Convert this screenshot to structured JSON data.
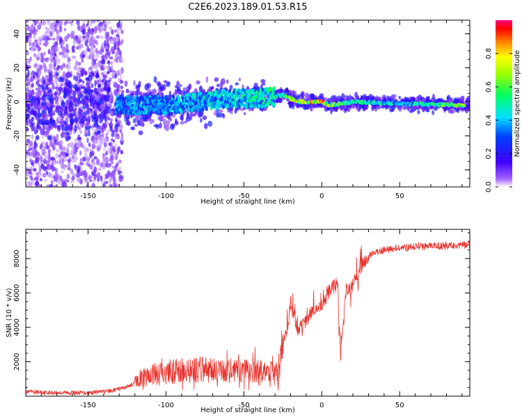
{
  "title": "C2E6.2023.189.01.53.R15",
  "chart_data": [
    {
      "type": "heatmap",
      "xlabel": "Height of straight line (km)",
      "ylabel": "Frequency (Hz)",
      "xlim": [
        -190,
        95
      ],
      "ylim": [
        -50,
        48
      ],
      "xticks": [
        -150,
        -100,
        -50,
        0,
        50
      ],
      "xtick_labels": [
        "-150",
        "-100",
        "-50",
        "0",
        "50"
      ],
      "yticks": [
        -40,
        -20,
        0,
        20,
        40
      ],
      "ytick_labels": [
        "-40",
        "-20",
        "0",
        "20",
        "40"
      ],
      "colorbar": {
        "label": "Normalized spectral amplitude",
        "range": [
          0,
          1
        ],
        "ticks": [
          0.0,
          0.2,
          0.4,
          0.6,
          0.8
        ],
        "tick_labels": [
          "0.0",
          "0.2",
          "0.4",
          "0.6",
          "0.8"
        ]
      },
      "ridge": {
        "description": "main spectral line frequency vs height",
        "x": [
          -130,
          -100,
          -60,
          -40,
          -25,
          -15,
          0,
          5,
          20,
          50,
          92
        ],
        "freq": [
          -2,
          -2,
          2,
          2,
          4,
          0,
          0,
          -2,
          0,
          -1,
          -2
        ],
        "amplitude": [
          0.4,
          0.45,
          0.5,
          0.55,
          0.6,
          0.85,
          0.95,
          0.8,
          0.6,
          0.5,
          0.75
        ]
      }
    },
    {
      "type": "line",
      "xlabel": "Height of straight line (km)",
      "ylabel": "SNR (10 * v/v)",
      "xlim": [
        -190,
        95
      ],
      "ylim": [
        0,
        9700
      ],
      "xticks": [
        -150,
        -100,
        -50,
        0,
        50
      ],
      "xtick_labels": [
        "-150",
        "-100",
        "-50",
        "0",
        "50"
      ],
      "yticks": [
        2000,
        4000,
        6000,
        8000
      ],
      "ytick_labels": [
        "2000",
        "4000",
        "6000",
        "8000"
      ],
      "series": [
        {
          "name": "SNR",
          "color": "#e8302a",
          "x": [
            -190,
            -170,
            -150,
            -135,
            -125,
            -115,
            -100,
            -80,
            -60,
            -40,
            -28,
            -25,
            -22,
            -20,
            -15,
            -10,
            -5,
            0,
            5,
            10,
            12,
            15,
            20,
            25,
            30,
            40,
            60,
            80,
            92
          ],
          "values": [
            200,
            150,
            150,
            250,
            500,
            900,
            1200,
            1300,
            1200,
            1200,
            1100,
            3000,
            4000,
            5500,
            3700,
            4500,
            5000,
            5200,
            6200,
            6500,
            2200,
            6000,
            6500,
            7500,
            8200,
            8500,
            8700,
            8750,
            8800
          ]
        }
      ]
    }
  ]
}
